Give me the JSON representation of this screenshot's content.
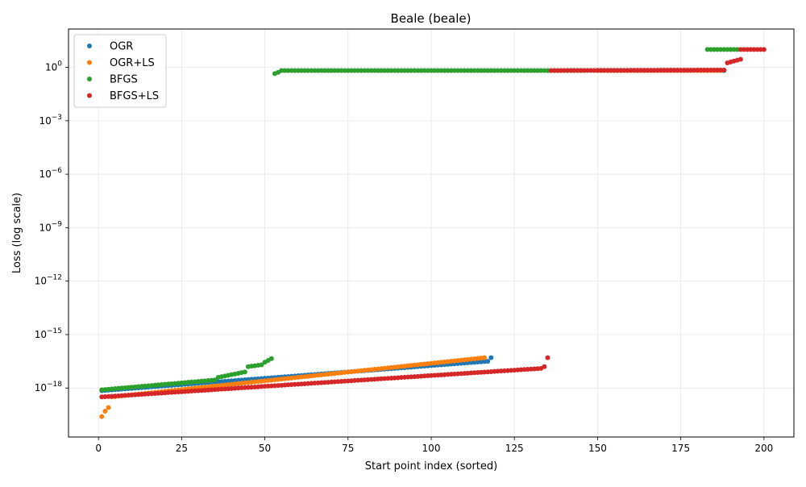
{
  "chart_data": {
    "type": "scatter",
    "title": "Beale (beale)",
    "xlabel": "Start point index (sorted)",
    "ylabel": "Loss (log scale)",
    "xlim": [
      -9,
      209
    ],
    "ylim_log10": [
      -20.75,
      2.15
    ],
    "y_scale": "log",
    "grid": true,
    "legend_position": "top-left",
    "x_ticks": [
      {
        "value": 0,
        "label": "0"
      },
      {
        "value": 25,
        "label": "25"
      },
      {
        "value": 50,
        "label": "50"
      },
      {
        "value": 75,
        "label": "75"
      },
      {
        "value": 100,
        "label": "100"
      },
      {
        "value": 125,
        "label": "125"
      },
      {
        "value": 150,
        "label": "150"
      },
      {
        "value": 175,
        "label": "175"
      },
      {
        "value": 200,
        "label": "200"
      }
    ],
    "y_ticks": [
      {
        "exp": 0,
        "label": "10^0",
        "special": "1"
      },
      {
        "exp": -3,
        "label": "10^-3"
      },
      {
        "exp": -6,
        "label": "10^-6"
      },
      {
        "exp": -9,
        "label": "10^-9"
      },
      {
        "exp": -12,
        "label": "10^-12"
      },
      {
        "exp": -15,
        "label": "10^-15"
      },
      {
        "exp": -18,
        "label": "10^-18"
      }
    ],
    "series": [
      {
        "name": "OGR",
        "color": "#1f77b4",
        "segments": [
          {
            "x_start": 1,
            "x_end": 117,
            "log_start": -18.15,
            "log_end": -16.5
          },
          {
            "x_start": 118,
            "x_end": 118,
            "log_start": -16.3,
            "log_end": -16.3
          },
          {
            "x_start": 153,
            "x_end": 188,
            "log_start": -0.18,
            "log_end": -0.18
          }
        ]
      },
      {
        "name": "OGR+LS",
        "color": "#ff7f0e",
        "segments": [
          {
            "x_start": 1,
            "x_end": 1,
            "log_start": -19.6,
            "log_end": -19.6
          },
          {
            "x_start": 2,
            "x_end": 2,
            "log_start": -19.3,
            "log_end": -19.3
          },
          {
            "x_start": 3,
            "x_end": 3,
            "log_start": -19.1,
            "log_end": -19.1
          },
          {
            "x_start": 4,
            "x_end": 116,
            "log_start": -18.5,
            "log_end": -16.3
          },
          {
            "x_start": 150,
            "x_end": 187,
            "log_start": -0.18,
            "log_end": -0.18
          }
        ]
      },
      {
        "name": "BFGS",
        "color": "#2ca02c",
        "segments": [
          {
            "x_start": 1,
            "x_end": 35,
            "log_start": -18.1,
            "log_end": -17.55
          },
          {
            "x_start": 36,
            "x_end": 44,
            "log_start": -17.4,
            "log_end": -17.1
          },
          {
            "x_start": 45,
            "x_end": 49,
            "log_start": -16.8,
            "log_end": -16.7
          },
          {
            "x_start": 50,
            "x_end": 52,
            "log_start": -16.55,
            "log_end": -16.35
          },
          {
            "x_start": 53,
            "x_end": 54,
            "log_start": -0.35,
            "log_end": -0.28
          },
          {
            "x_start": 55,
            "x_end": 146,
            "log_start": -0.18,
            "log_end": -0.18
          },
          {
            "x_start": 183,
            "x_end": 192,
            "log_start": 1.0,
            "log_end": 1.0
          }
        ]
      },
      {
        "name": "BFGS+LS",
        "color": "#d62728",
        "segments": [
          {
            "x_start": 1,
            "x_end": 133,
            "log_start": -18.5,
            "log_end": -16.9
          },
          {
            "x_start": 134,
            "x_end": 134,
            "log_start": -16.8,
            "log_end": -16.8
          },
          {
            "x_start": 135,
            "x_end": 135,
            "log_start": -16.3,
            "log_end": -16.3
          },
          {
            "x_start": 136,
            "x_end": 188,
            "log_start": -0.18,
            "log_end": -0.15
          },
          {
            "x_start": 189,
            "x_end": 193,
            "log_start": 0.25,
            "log_end": 0.45
          },
          {
            "x_start": 193,
            "x_end": 200,
            "log_start": 1.0,
            "log_end": 1.0
          }
        ]
      }
    ]
  }
}
